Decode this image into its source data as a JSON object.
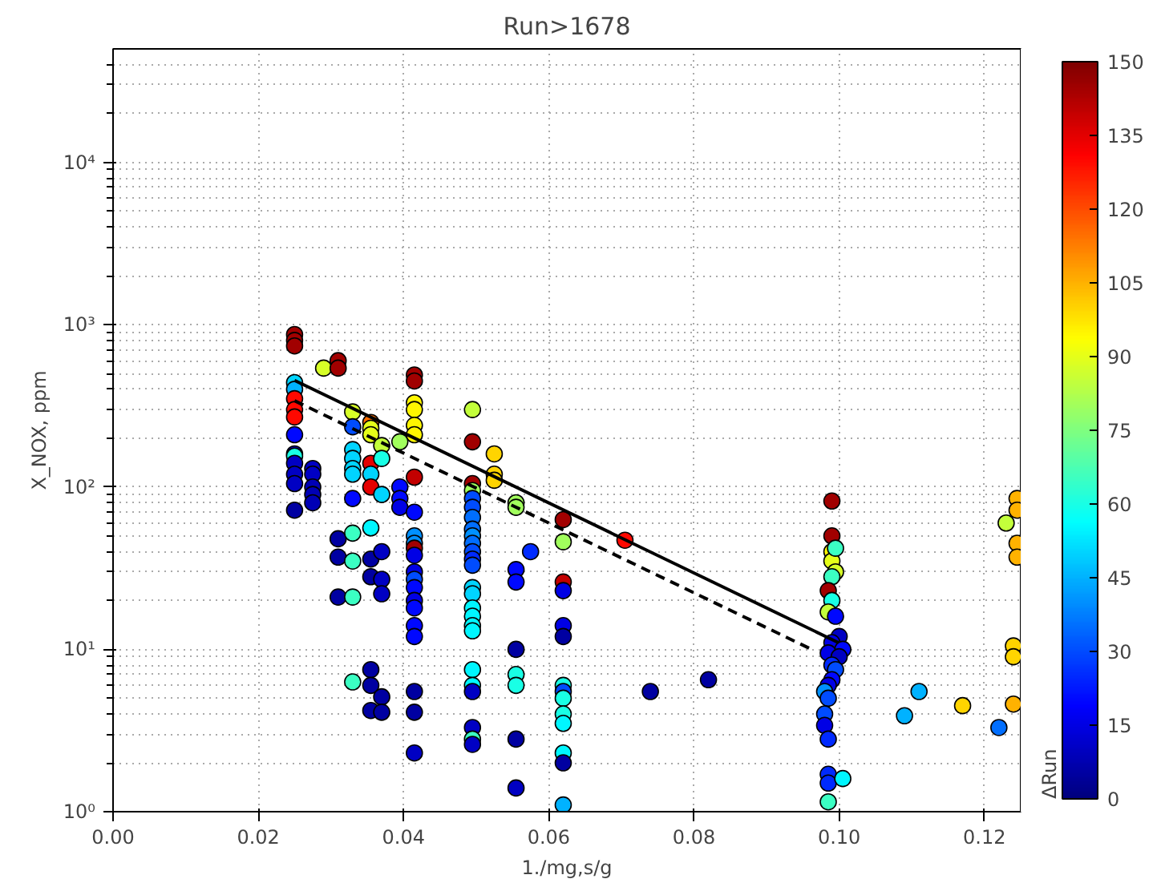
{
  "chart_data": {
    "type": "scatter",
    "title": "Run>1678",
    "xlabel": "1./mg,s/g",
    "ylabel": "X_NOX, ppm",
    "clabel": "ΔRun",
    "log": "y",
    "grid": true,
    "xlim": [
      0,
      0.125
    ],
    "ylim": [
      1,
      50000
    ],
    "xticks": [
      {
        "value": 0,
        "label": "0.00"
      },
      {
        "value": 0.02,
        "label": "0.02"
      },
      {
        "value": 0.04,
        "label": "0.04"
      },
      {
        "value": 0.06,
        "label": "0.06"
      },
      {
        "value": 0.08,
        "label": "0.08"
      },
      {
        "value": 0.1,
        "label": "0.10"
      },
      {
        "value": 0.12,
        "label": "0.12"
      }
    ],
    "yticks": [
      {
        "value": 1,
        "label": "10⁰"
      },
      {
        "value": 10,
        "label": "10¹"
      },
      {
        "value": 100,
        "label": "10²"
      },
      {
        "value": 1000,
        "label": "10³"
      },
      {
        "value": 10000,
        "label": "10⁴"
      }
    ],
    "clim": [
      0,
      150
    ],
    "cticks": [
      0,
      15,
      30,
      45,
      60,
      75,
      90,
      105,
      120,
      135,
      150
    ],
    "series": [
      {
        "marker": "circle",
        "x": [
          0.025,
          0.025,
          0.025,
          0.025,
          0.025,
          0.025,
          0.025,
          0.025,
          0.025,
          0.025,
          0.025,
          0.025,
          0.025,
          0.025,
          0.025,
          0.0275,
          0.0275,
          0.0275,
          0.0275,
          0.0275,
          0.029,
          0.031,
          0.031,
          0.031,
          0.031,
          0.031,
          0.033,
          0.033,
          0.033,
          0.033,
          0.033,
          0.033,
          0.033,
          0.033,
          0.033,
          0.033,
          0.033,
          0.0355,
          0.0355,
          0.0355,
          0.0355,
          0.0355,
          0.0355,
          0.0355,
          0.0355,
          0.0355,
          0.0355,
          0.0355,
          0.0355,
          0.037,
          0.037,
          0.037,
          0.037,
          0.037,
          0.037,
          0.037,
          0.037,
          0.0395,
          0.0395,
          0.0395,
          0.0395,
          0.0415,
          0.0415,
          0.0415,
          0.0415,
          0.0415,
          0.0415,
          0.0415,
          0.0415,
          0.0415,
          0.0415,
          0.0415,
          0.0415,
          0.0415,
          0.0415,
          0.0415,
          0.0415,
          0.0415,
          0.0415,
          0.0415,
          0.0415,
          0.0415,
          0.0415,
          0.0495,
          0.0495,
          0.0495,
          0.0495,
          0.0495,
          0.0495,
          0.0495,
          0.0495,
          0.0495,
          0.0495,
          0.0495,
          0.0495,
          0.0495,
          0.0495,
          0.0495,
          0.0495,
          0.0495,
          0.0495,
          0.0495,
          0.0495,
          0.0495,
          0.0495,
          0.0495,
          0.0495,
          0.0495,
          0.0525,
          0.0525,
          0.0525,
          0.0555,
          0.0555,
          0.0555,
          0.0555,
          0.0555,
          0.0555,
          0.0555,
          0.0555,
          0.0555,
          0.0575,
          0.062,
          0.062,
          0.062,
          0.062,
          0.062,
          0.062,
          0.062,
          0.062,
          0.062,
          0.062,
          0.062,
          0.062,
          0.062,
          0.062,
          0.0705,
          0.074,
          0.082,
          0.099,
          0.099,
          0.099,
          0.099,
          0.0995,
          0.0995,
          0.099,
          0.0985,
          0.099,
          0.0985,
          0.0995,
          0.1,
          0.099,
          0.1005,
          0.0985,
          0.1,
          0.099,
          0.0995,
          0.099,
          0.0985,
          0.098,
          0.0985,
          0.098,
          0.098,
          0.0985,
          0.0985,
          0.0985,
          0.0985,
          0.1005,
          0.109,
          0.111,
          0.117,
          0.122,
          0.123,
          0.124,
          0.124,
          0.124,
          0.1245,
          0.1245,
          0.1245,
          0.1245
        ],
        "values": [
          870,
          800,
          740,
          440,
          400,
          350,
          300,
          270,
          210,
          160,
          155,
          140,
          120,
          105,
          72,
          130,
          120,
          100,
          90,
          80,
          540,
          600,
          540,
          48,
          37,
          21,
          290,
          235,
          170,
          150,
          130,
          120,
          85,
          52,
          35,
          21,
          6.3,
          250,
          230,
          210,
          140,
          120,
          100,
          56,
          36,
          28,
          7.5,
          6,
          4.2,
          180,
          150,
          90,
          40,
          27,
          22,
          5.1,
          4.1,
          190,
          100,
          85,
          75,
          490,
          450,
          330,
          300,
          240,
          210,
          115,
          70,
          50,
          45,
          42,
          38,
          30,
          27,
          24,
          20,
          18,
          14,
          12,
          5.5,
          4.1,
          2.3,
          300,
          190,
          105,
          95,
          85,
          75,
          65,
          55,
          50,
          45,
          40,
          36,
          33,
          24,
          22,
          18,
          16,
          14,
          13,
          7.5,
          6,
          5.5,
          3.3,
          2.8,
          2.6,
          160,
          120,
          110,
          80,
          75,
          31,
          26,
          10,
          7,
          6,
          2.8,
          1.4,
          40,
          63,
          46,
          26,
          23,
          14,
          12,
          6,
          5.5,
          5,
          4,
          3.5,
          2.3,
          2,
          1.1,
          47,
          5.5,
          6.5,
          82,
          50,
          40,
          35,
          42,
          30,
          28,
          23,
          20,
          17,
          16,
          12,
          11,
          10,
          9.5,
          9,
          8,
          7.5,
          6.5,
          6,
          5.5,
          5,
          4,
          3.4,
          2.8,
          1.7,
          1.5,
          1.15,
          1.6,
          3.9,
          5.5,
          4.5,
          3.3,
          60,
          10.5,
          9,
          4.6,
          85,
          72,
          45,
          37
        ],
        "colors": [
          "#a10000",
          "#a10000",
          "#a10000",
          "#00d4ff",
          "#00b2ff",
          "#ff0800",
          "#ff0800",
          "#ff0800",
          "#0008ff",
          "#0000c3",
          "#19ffe5",
          "#0000c3",
          "#0000c3",
          "#0000c3",
          "#0000a1",
          "#0000c3",
          "#0000c3",
          "#0000b5",
          "#0000b5",
          "#0000b5",
          "#d7ff27",
          "#a10000",
          "#a10000",
          "#0000a1",
          "#0000a1",
          "#0000a1",
          "#d7ff27",
          "#004cff",
          "#00d4ff",
          "#00d4ff",
          "#00d4ff",
          "#00d4ff",
          "#0008ff",
          "#3bffc3",
          "#3bffc3",
          "#3bffc3",
          "#3bffc3",
          "#ff6e00",
          "#e5ff19",
          "#e5ff19",
          "#e50000",
          "#00d4ff",
          "#e50000",
          "#00f6ff",
          "#0000a1",
          "#0000a1",
          "#0000a1",
          "#0000a1",
          "#0000a1",
          "#c3ff3b",
          "#19ffe5",
          "#00d4ff",
          "#0000c3",
          "#0000c3",
          "#0000c3",
          "#0000a1",
          "#0000a1",
          "#a1ff5d",
          "#0008ff",
          "#0008ff",
          "#0000e5",
          "#a10000",
          "#a10000",
          "#fff600",
          "#fff600",
          "#fff600",
          "#fff600",
          "#c30000",
          "#0008ff",
          "#0090ff",
          "#0090ff",
          "#a10000",
          "#0000e5",
          "#0000e5",
          "#004cff",
          "#0008ff",
          "#0000e5",
          "#0008ff",
          "#0008ff",
          "#0008ff",
          "#0000a1",
          "#0000a1",
          "#0000c3",
          "#c3ff3b",
          "#a10000",
          "#a10000",
          "#a1ff5d",
          "#004cff",
          "#004cff",
          "#006eff",
          "#006eff",
          "#0090ff",
          "#006eff",
          "#004cff",
          "#002aff",
          "#004cff",
          "#00d4ff",
          "#00d4ff",
          "#00f6ff",
          "#00f6ff",
          "#00f6ff",
          "#00f6ff",
          "#00f6ff",
          "#00f6ff",
          "#0000c3",
          "#0000c3",
          "#3bffc3",
          "#0000c3",
          "#ffd400",
          "#ffd400",
          "#ffd400",
          "#a1ff5d",
          "#a1ff5d",
          "#0008ff",
          "#0008ff",
          "#0000a1",
          "#19ffe5",
          "#19ffe5",
          "#0000a1",
          "#0000c3",
          "#002aff",
          "#a10000",
          "#a1ff5d",
          "#c30000",
          "#0000e5",
          "#0000e5",
          "#0000a1",
          "#19ffe5",
          "#004cff",
          "#19ffe5",
          "#19ffe5",
          "#00f6ff",
          "#00f6ff",
          "#0000a1",
          "#00b2ff",
          "#ff0800",
          "#0000a1",
          "#0000a1",
          "#a10000",
          "#a10000",
          "#fff600",
          "#e5ff19",
          "#3bffc3",
          "#d7ff27",
          "#3bffc3",
          "#a10000",
          "#19ffe5",
          "#c3ff3b",
          "#0008ff",
          "#0000c3",
          "#0000e5",
          "#0008ff",
          "#0000e5",
          "#0000c3",
          "#002aff",
          "#004cff",
          "#0008ff",
          "#0000e5",
          "#0090ff",
          "#004cff",
          "#004cff",
          "#0000e5",
          "#002aff",
          "#002aff",
          "#002aff",
          "#3bffc3",
          "#00f6ff",
          "#00b2ff",
          "#00b2ff",
          "#ffd400",
          "#006eff",
          "#c3ff3b",
          "#ffd400",
          "#ffd400",
          "#ffb200",
          "#ffb200",
          "#ffb200",
          "#ffb200",
          "#ffb200"
        ]
      },
      {
        "type": "line",
        "x": [
          0.025,
          0.0999
        ],
        "values": [
          454,
          11
        ],
        "color": "#000000",
        "line_style": "solid"
      },
      {
        "type": "line",
        "x": [
          0.025,
          0.0962
        ],
        "values": [
          340,
          10
        ],
        "color": "#000000",
        "line_style": "dashed"
      }
    ]
  }
}
